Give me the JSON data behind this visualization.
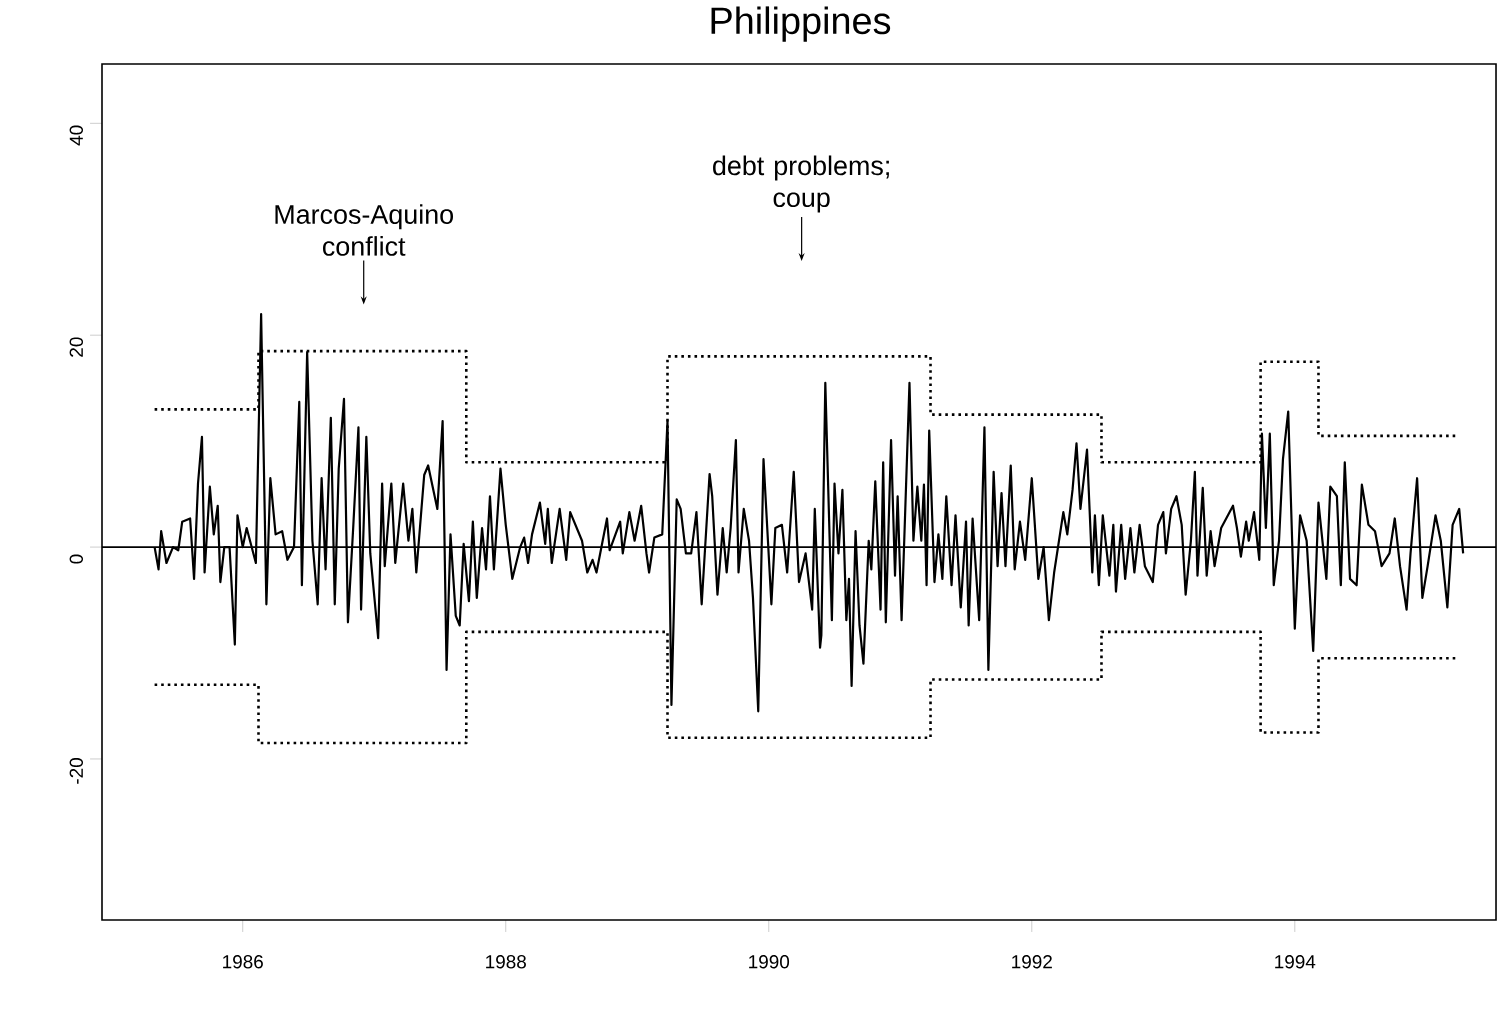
{
  "chart_data": {
    "type": "line",
    "title": "Philippines",
    "xlim": [
      1984.93,
      1995.53
    ],
    "ylim": [
      -35.2,
      45.6
    ],
    "xticks": [
      1986,
      1988,
      1990,
      1992,
      1994
    ],
    "yticks": [
      -20,
      0,
      20,
      40
    ],
    "grid": false,
    "marker": "none",
    "ref_lines": [
      {
        "axis": "y",
        "value": 0,
        "color": "#000000",
        "line_style": "solid"
      }
    ],
    "annotations": [
      {
        "text": "Marcos-Aquino conflict",
        "x": 1986.92,
        "y": 22.9
      },
      {
        "text": "debt problems; coup",
        "x": 1990.25,
        "y": 27.0
      }
    ],
    "series": [
      {
        "color": "#000000",
        "line_style": "solid",
        "x": [
          1985.33,
          1985.36,
          1985.38,
          1985.42,
          1985.47,
          1985.51,
          1985.54,
          1985.6,
          1985.63,
          1985.66,
          1985.69,
          1985.71,
          1985.75,
          1985.78,
          1985.81,
          1985.83,
          1985.86,
          1985.9,
          1985.94,
          1985.96,
          1986.0,
          1986.03,
          1986.1,
          1986.14,
          1986.18,
          1986.21,
          1986.25,
          1986.3,
          1986.34,
          1986.39,
          1986.43,
          1986.45,
          1986.49,
          1986.53,
          1986.57,
          1986.6,
          1986.63,
          1986.67,
          1986.7,
          1986.73,
          1986.77,
          1986.8,
          1986.84,
          1986.88,
          1986.9,
          1986.94,
          1986.97,
          1987.03,
          1987.06,
          1987.08,
          1987.13,
          1987.16,
          1987.22,
          1987.26,
          1987.29,
          1987.32,
          1987.38,
          1987.41,
          1987.48,
          1987.52,
          1987.55,
          1987.58,
          1987.62,
          1987.65,
          1987.68,
          1987.72,
          1987.75,
          1987.78,
          1987.82,
          1987.85,
          1987.88,
          1987.91,
          1987.96,
          1988.0,
          1988.05,
          1988.11,
          1988.14,
          1988.17,
          1988.2,
          1988.26,
          1988.3,
          1988.32,
          1988.35,
          1988.41,
          1988.46,
          1988.49,
          1988.58,
          1988.62,
          1988.66,
          1988.69,
          1988.77,
          1988.79,
          1988.87,
          1988.89,
          1988.94,
          1988.98,
          1989.03,
          1989.07,
          1989.09,
          1989.13,
          1989.19,
          1989.23,
          1989.26,
          1989.3,
          1989.33,
          1989.37,
          1989.41,
          1989.45,
          1989.49,
          1989.55,
          1989.57,
          1989.61,
          1989.65,
          1989.68,
          1989.71,
          1989.75,
          1989.77,
          1989.81,
          1989.85,
          1989.88,
          1989.92,
          1989.96,
          1990.02,
          1990.05,
          1990.1,
          1990.14,
          1990.19,
          1990.23,
          1990.28,
          1990.33,
          1990.35,
          1990.39,
          1990.4,
          1990.43,
          1990.48,
          1990.5,
          1990.53,
          1990.56,
          1990.59,
          1990.61,
          1990.63,
          1990.66,
          1990.69,
          1990.72,
          1990.76,
          1990.78,
          1990.81,
          1990.85,
          1990.87,
          1990.89,
          1990.93,
          1990.96,
          1990.98,
          1991.01,
          1991.07,
          1991.1,
          1991.13,
          1991.16,
          1991.18,
          1991.2,
          1991.22,
          1991.26,
          1991.29,
          1991.32,
          1991.35,
          1991.39,
          1991.42,
          1991.46,
          1991.5,
          1991.52,
          1991.55,
          1991.6,
          1991.64,
          1991.67,
          1991.71,
          1991.74,
          1991.77,
          1991.8,
          1991.84,
          1991.87,
          1991.91,
          1991.95,
          1992.0,
          1992.05,
          1992.09,
          1992.13,
          1992.17,
          1992.24,
          1992.27,
          1992.31,
          1992.34,
          1992.37,
          1992.42,
          1992.46,
          1992.48,
          1992.51,
          1992.54,
          1992.59,
          1992.62,
          1992.64,
          1992.68,
          1992.71,
          1992.75,
          1992.78,
          1992.82,
          1992.86,
          1992.92,
          1992.96,
          1993.0,
          1993.02,
          1993.06,
          1993.1,
          1993.14,
          1993.17,
          1993.21,
          1993.24,
          1993.26,
          1993.3,
          1993.33,
          1993.36,
          1993.39,
          1993.44,
          1993.53,
          1993.56,
          1993.59,
          1993.63,
          1993.65,
          1993.69,
          1993.73,
          1993.75,
          1993.78,
          1993.81,
          1993.84,
          1993.88,
          1993.91,
          1993.95,
          1994.0,
          1994.04,
          1994.09,
          1994.14,
          1994.18,
          1994.24,
          1994.27,
          1994.32,
          1994.35,
          1994.38,
          1994.42,
          1994.47,
          1994.51,
          1994.56,
          1994.61,
          1994.66,
          1994.72,
          1994.76,
          1994.8,
          1994.85,
          1994.88,
          1994.93,
          1994.97,
          1995.01,
          1995.07,
          1995.11,
          1995.16,
          1995.2,
          1995.25,
          1995.28
        ],
        "values": [
          0.0,
          -2.1,
          1.5,
          -1.5,
          0.0,
          -0.3,
          2.4,
          2.7,
          -3.0,
          6.0,
          10.4,
          -2.4,
          5.7,
          1.2,
          3.9,
          -3.3,
          0.0,
          0.0,
          -9.2,
          3.0,
          0.0,
          1.8,
          -1.5,
          22.0,
          -5.4,
          6.5,
          1.2,
          1.5,
          -1.2,
          0.0,
          13.7,
          -3.6,
          18.4,
          0.6,
          -5.4,
          6.5,
          -2.1,
          12.2,
          -5.4,
          7.4,
          14.0,
          -7.1,
          1.8,
          11.3,
          -5.9,
          10.4,
          -0.6,
          -8.6,
          6.0,
          -1.8,
          6.0,
          -1.5,
          6.0,
          0.6,
          3.6,
          -2.4,
          6.8,
          7.7,
          3.6,
          11.9,
          -11.6,
          1.2,
          -6.5,
          -7.4,
          0.3,
          -5.1,
          2.4,
          -4.8,
          1.8,
          -2.1,
          4.8,
          -2.1,
          7.4,
          2.1,
          -3.0,
          0.0,
          0.9,
          -1.5,
          1.2,
          4.2,
          0.3,
          3.6,
          -1.5,
          3.6,
          -1.2,
          3.3,
          0.6,
          -2.4,
          -1.2,
          -2.4,
          2.7,
          -0.3,
          2.4,
          -0.6,
          3.3,
          0.6,
          3.9,
          -0.6,
          -2.4,
          0.9,
          1.2,
          11.9,
          -14.9,
          4.5,
          3.6,
          -0.6,
          -0.6,
          3.3,
          -5.4,
          6.9,
          4.8,
          -4.5,
          1.8,
          -2.4,
          1.8,
          10.1,
          -2.4,
          3.6,
          0.6,
          -4.8,
          -15.5,
          8.3,
          -5.4,
          1.8,
          2.1,
          -2.4,
          7.1,
          -3.3,
          -0.6,
          -5.9,
          3.6,
          -9.5,
          -8.3,
          15.5,
          -6.9,
          6.0,
          -0.6,
          5.4,
          -6.9,
          -3.0,
          -13.1,
          1.5,
          -7.4,
          -11.0,
          0.6,
          -2.1,
          6.2,
          -5.9,
          8.0,
          -7.1,
          10.1,
          -2.7,
          4.8,
          -6.9,
          15.5,
          0.6,
          5.7,
          0.6,
          5.9,
          -3.6,
          11.0,
          -3.3,
          1.2,
          -3.0,
          4.8,
          -3.6,
          3.0,
          -5.7,
          2.4,
          -7.4,
          2.7,
          -6.9,
          11.3,
          -11.6,
          7.1,
          -1.8,
          5.1,
          -1.8,
          7.7,
          -2.1,
          2.4,
          -1.2,
          6.5,
          -3.0,
          0.0,
          -6.9,
          -2.4,
          3.3,
          1.2,
          5.4,
          9.8,
          3.6,
          9.2,
          -2.4,
          3.0,
          -3.6,
          3.0,
          -2.7,
          2.1,
          -4.2,
          2.1,
          -3.0,
          1.8,
          -2.4,
          2.1,
          -1.8,
          -3.3,
          2.1,
          3.3,
          -0.6,
          3.6,
          4.8,
          2.1,
          -4.5,
          0.6,
          7.1,
          -2.7,
          5.6,
          -2.7,
          1.5,
          -1.8,
          1.8,
          3.9,
          1.8,
          -0.9,
          2.4,
          0.6,
          3.3,
          -1.2,
          10.7,
          1.8,
          10.7,
          -3.6,
          0.6,
          8.3,
          12.8,
          -7.7,
          3.0,
          0.6,
          -9.8,
          4.2,
          -3.0,
          5.7,
          4.8,
          -3.6,
          8.0,
          -3.0,
          -3.6,
          5.9,
          2.1,
          1.5,
          -1.8,
          -0.6,
          2.7,
          -1.8,
          -5.9,
          -0.6,
          6.5,
          -4.8,
          -1.8,
          3.0,
          0.6,
          -5.7,
          2.1,
          3.6,
          -0.6
        ]
      },
      {
        "type": "step",
        "color": "#000000",
        "line_style": "dotted",
        "x": [
          1985.33,
          1986.12,
          1987.7,
          1989.23,
          1991.23,
          1992.53,
          1993.74,
          1994.18,
          1995.24
        ],
        "values": [
          13,
          18.5,
          8,
          18,
          12.5,
          8,
          17.5,
          10.5,
          10.5
        ]
      },
      {
        "type": "step",
        "color": "#000000",
        "line_style": "dotted",
        "x": [
          1985.33,
          1986.12,
          1987.7,
          1989.23,
          1991.23,
          1992.53,
          1993.74,
          1994.18,
          1995.24
        ],
        "values": [
          -13,
          -18.5,
          -8,
          -18,
          -12.5,
          -8,
          -17.5,
          -10.5,
          -10.5
        ]
      }
    ]
  }
}
